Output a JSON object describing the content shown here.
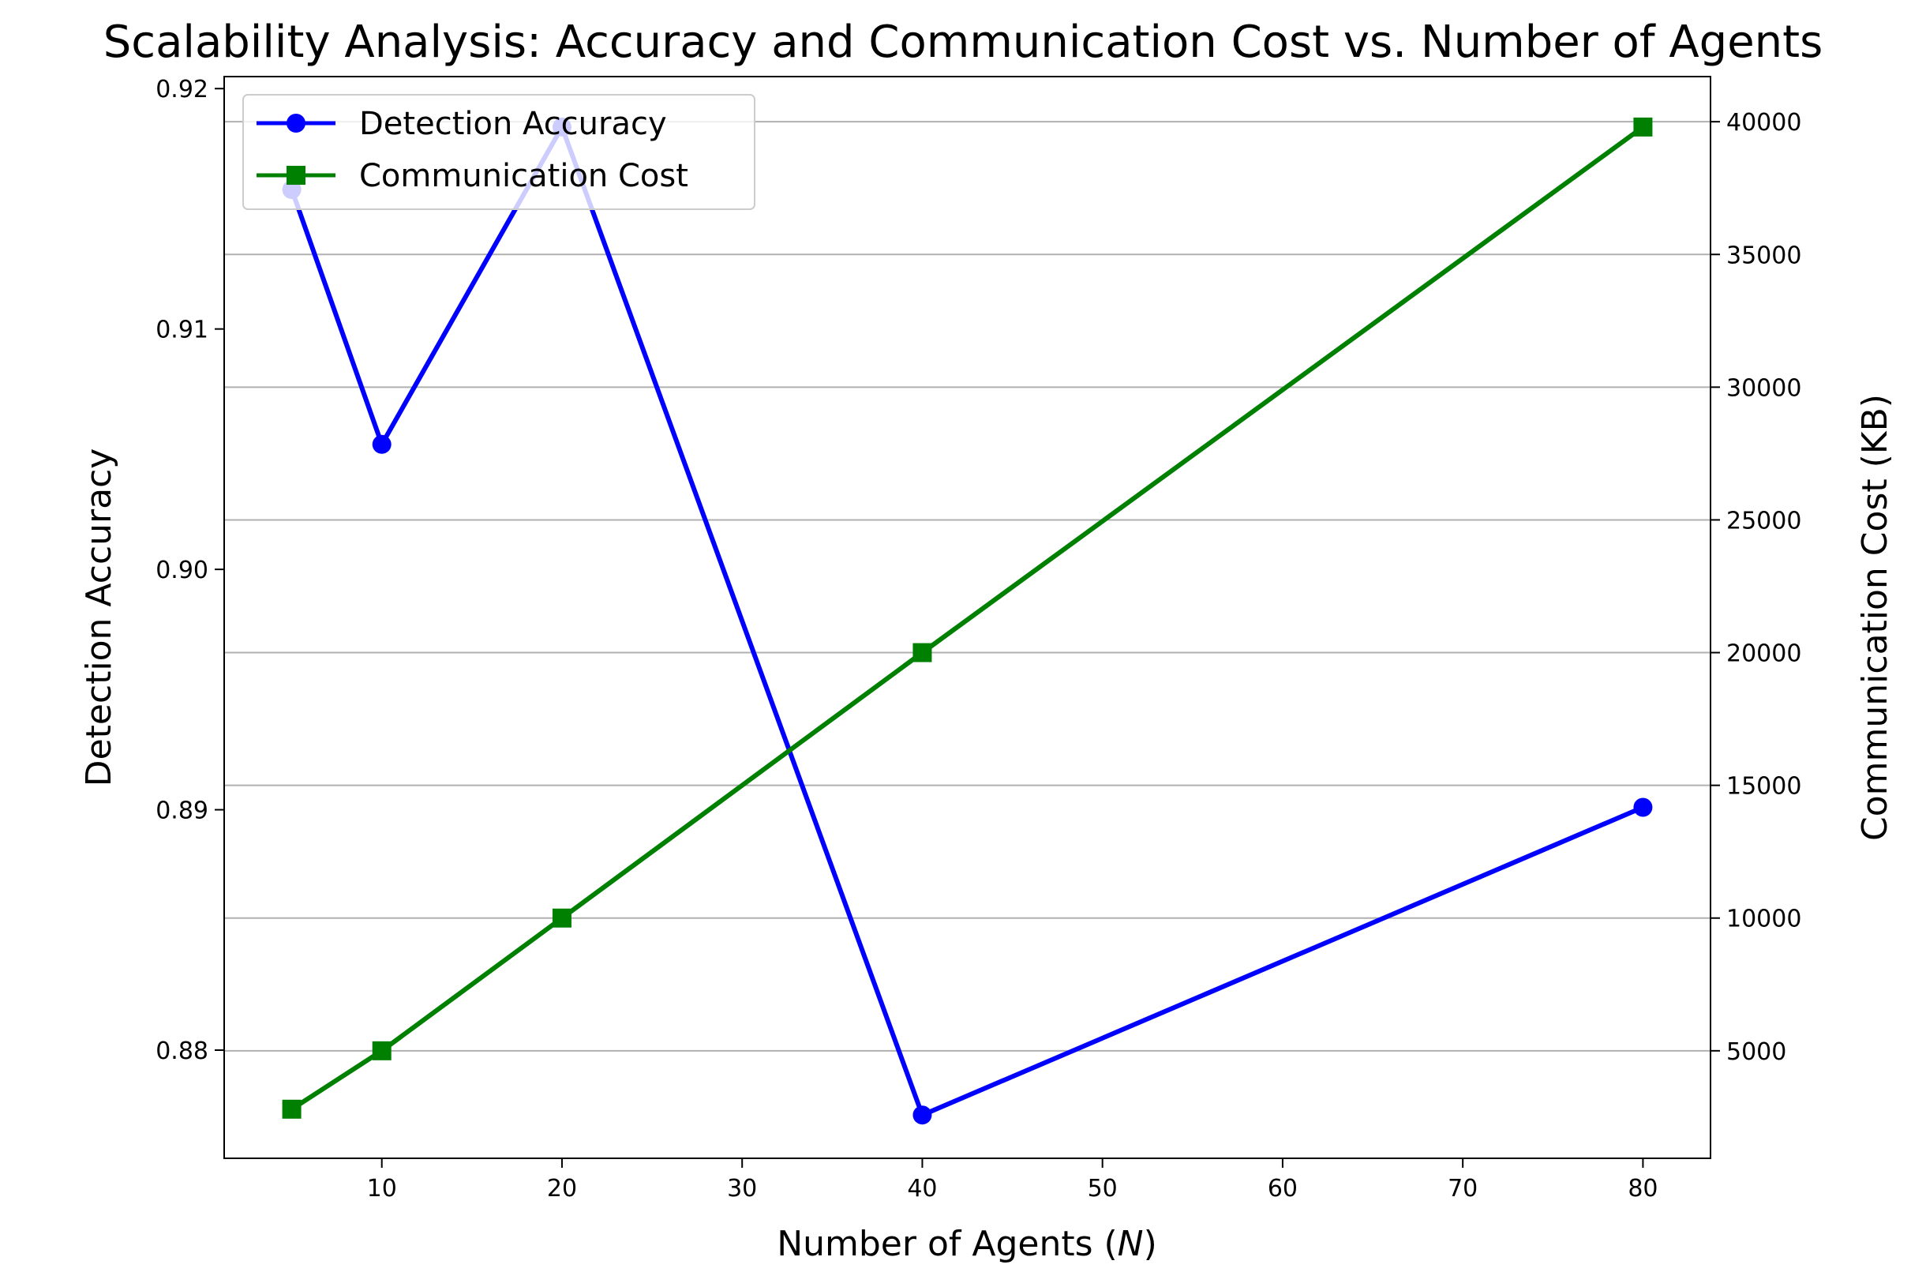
{
  "chart_data": {
    "type": "line",
    "title": "Scalability Analysis: Accuracy and Communication Cost vs. Number of Agents",
    "xlabel_prefix": "Number of Agents (",
    "xlabel_var": "N",
    "xlabel_suffix": ")",
    "ylabel_left": "Detection Accuracy",
    "ylabel_right": "Communication Cost (KB)",
    "xlim": [
      1.25,
      83.75
    ],
    "ylim_left": [
      0.8755,
      0.9205
    ],
    "ylim_right": [
      950,
      41700
    ],
    "x_ticks": [
      10,
      20,
      30,
      40,
      50,
      60,
      70,
      80
    ],
    "y_left_ticks": [
      {
        "value": 0.88,
        "label": "0.88"
      },
      {
        "value": 0.89,
        "label": "0.89"
      },
      {
        "value": 0.9,
        "label": "0.90"
      },
      {
        "value": 0.91,
        "label": "0.91"
      },
      {
        "value": 0.92,
        "label": "0.92"
      }
    ],
    "y_right_ticks": [
      5000,
      10000,
      15000,
      20000,
      25000,
      30000,
      35000,
      40000
    ],
    "grid": "horizontal, right axis",
    "legend_position": "upper-left",
    "x": [
      5,
      10,
      20,
      40,
      80
    ],
    "series": [
      {
        "name": "Detection Accuracy",
        "axis": "left",
        "color": "#0000ff",
        "marker": "circle",
        "values": [
          0.9158,
          0.9052,
          0.9184,
          0.8773,
          0.8901
        ]
      },
      {
        "name": "Communication Cost",
        "axis": "right",
        "color": "#008000",
        "marker": "square",
        "values": [
          2800,
          5000,
          10000,
          20000,
          39800
        ]
      }
    ]
  }
}
